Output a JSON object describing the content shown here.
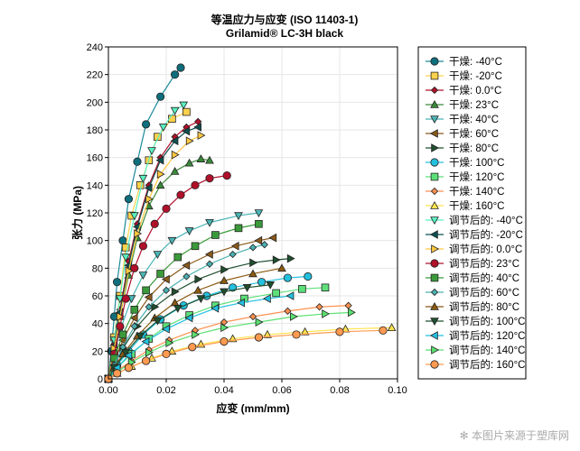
{
  "chart_data": {
    "type": "line",
    "title": "等温应力与应变 (ISO 11403-1)",
    "subtitle": "Grilamid® LC-3H black",
    "xlabel": "应变 (mm/mm)",
    "ylabel": "张力 (MPa)",
    "xlim": [
      0,
      0.1
    ],
    "ylim": [
      0,
      240
    ],
    "xticks": [
      "0.00",
      "0.02",
      "0.04",
      "0.06",
      "0.08",
      "0.10"
    ],
    "yticks": [
      "0",
      "20",
      "40",
      "60",
      "80",
      "100",
      "120",
      "140",
      "160",
      "180",
      "200",
      "220",
      "240"
    ],
    "grid": true,
    "legend_position": "right-outside",
    "series": [
      {
        "name": "干燥: -40°C",
        "marker": "circle",
        "fill": "#0f6e7c",
        "line": "#1a8a99",
        "points": [
          [
            0,
            0
          ],
          [
            0.001,
            20
          ],
          [
            0.002,
            45
          ],
          [
            0.003,
            70
          ],
          [
            0.005,
            100
          ],
          [
            0.007,
            130
          ],
          [
            0.01,
            157
          ],
          [
            0.013,
            184
          ],
          [
            0.018,
            204
          ],
          [
            0.023,
            220
          ],
          [
            0.025,
            225
          ]
        ]
      },
      {
        "name": "干燥: -20°C",
        "marker": "square",
        "fill": "#ffd24d",
        "line": "#ffd24d",
        "points": [
          [
            0,
            0
          ],
          [
            0.002,
            30
          ],
          [
            0.004,
            60
          ],
          [
            0.006,
            95
          ],
          [
            0.008,
            118
          ],
          [
            0.011,
            140
          ],
          [
            0.014,
            158
          ],
          [
            0.017,
            175
          ],
          [
            0.022,
            188
          ],
          [
            0.027,
            193
          ]
        ]
      },
      {
        "name": "干燥: 0.0°C",
        "marker": "diamond",
        "fill": "#b0102a",
        "line": "#b0102a",
        "points": [
          [
            0,
            0
          ],
          [
            0.002,
            25
          ],
          [
            0.004,
            50
          ],
          [
            0.007,
            85
          ],
          [
            0.01,
            112
          ],
          [
            0.014,
            140
          ],
          [
            0.018,
            160
          ],
          [
            0.023,
            175
          ],
          [
            0.027,
            182
          ],
          [
            0.031,
            186
          ]
        ]
      },
      {
        "name": "干燥: 23°C",
        "marker": "up",
        "fill": "#3a8a3a",
        "line": "#3a8a3a",
        "points": [
          [
            0,
            0
          ],
          [
            0.002,
            22
          ],
          [
            0.004,
            45
          ],
          [
            0.007,
            75
          ],
          [
            0.01,
            102
          ],
          [
            0.014,
            125
          ],
          [
            0.018,
            140
          ],
          [
            0.023,
            150
          ],
          [
            0.028,
            156
          ],
          [
            0.032,
            159
          ],
          [
            0.035,
            158
          ]
        ]
      },
      {
        "name": "干燥: 40°C",
        "marker": "down",
        "fill": "#4bb5b5",
        "line": "#4bb5b5",
        "points": [
          [
            0,
            0
          ],
          [
            0.002,
            18
          ],
          [
            0.004,
            35
          ],
          [
            0.008,
            58
          ],
          [
            0.012,
            75
          ],
          [
            0.017,
            90
          ],
          [
            0.022,
            100
          ],
          [
            0.028,
            107
          ],
          [
            0.035,
            113
          ],
          [
            0.045,
            118
          ],
          [
            0.052,
            120
          ]
        ]
      },
      {
        "name": "干燥: 60°C",
        "marker": "left",
        "fill": "#8b5a1a",
        "line": "#8b5a1a",
        "points": [
          [
            0,
            0
          ],
          [
            0.002,
            12
          ],
          [
            0.005,
            28
          ],
          [
            0.009,
            44
          ],
          [
            0.014,
            59
          ],
          [
            0.02,
            72
          ],
          [
            0.027,
            82
          ],
          [
            0.035,
            90
          ],
          [
            0.044,
            96
          ],
          [
            0.052,
            100
          ],
          [
            0.057,
            102
          ]
        ]
      },
      {
        "name": "干燥: 80°C",
        "marker": "right",
        "fill": "#1f4f2f",
        "line": "#1f4f2f",
        "points": [
          [
            0,
            0
          ],
          [
            0.002,
            10
          ],
          [
            0.005,
            22
          ],
          [
            0.01,
            38
          ],
          [
            0.016,
            52
          ],
          [
            0.023,
            63
          ],
          [
            0.031,
            72
          ],
          [
            0.04,
            79
          ],
          [
            0.05,
            84
          ],
          [
            0.058,
            86
          ],
          [
            0.063,
            87
          ]
        ]
      },
      {
        "name": "干燥: 100°C",
        "marker": "circle",
        "fill": "#23c0dd",
        "line": "#23c0dd",
        "points": [
          [
            0,
            0
          ],
          [
            0.003,
            10
          ],
          [
            0.007,
            20
          ],
          [
            0.012,
            32
          ],
          [
            0.018,
            43
          ],
          [
            0.026,
            53
          ],
          [
            0.034,
            60
          ],
          [
            0.043,
            66
          ],
          [
            0.053,
            70
          ],
          [
            0.062,
            73
          ],
          [
            0.069,
            74
          ]
        ]
      },
      {
        "name": "干燥: 120°C",
        "marker": "square",
        "fill": "#5de07a",
        "line": "#5de07a",
        "points": [
          [
            0,
            0
          ],
          [
            0.003,
            8
          ],
          [
            0.008,
            18
          ],
          [
            0.014,
            29
          ],
          [
            0.02,
            38
          ],
          [
            0.028,
            46
          ],
          [
            0.037,
            53
          ],
          [
            0.047,
            58
          ],
          [
            0.058,
            62
          ],
          [
            0.067,
            65
          ],
          [
            0.075,
            66
          ]
        ]
      },
      {
        "name": "干燥: 140°C",
        "marker": "diamond",
        "fill": "#ff9150",
        "line": "#ff9150",
        "points": [
          [
            0,
            0
          ],
          [
            0.003,
            6
          ],
          [
            0.008,
            13
          ],
          [
            0.014,
            21
          ],
          [
            0.021,
            28
          ],
          [
            0.03,
            35
          ],
          [
            0.04,
            41
          ],
          [
            0.05,
            45
          ],
          [
            0.062,
            49
          ],
          [
            0.073,
            52
          ],
          [
            0.083,
            53
          ]
        ]
      },
      {
        "name": "干燥: 160°C",
        "marker": "up",
        "fill": "#ffe34d",
        "line": "#ffe34d",
        "points": [
          [
            0,
            0
          ],
          [
            0.003,
            4
          ],
          [
            0.008,
            9
          ],
          [
            0.015,
            15
          ],
          [
            0.022,
            20
          ],
          [
            0.032,
            25
          ],
          [
            0.043,
            29
          ],
          [
            0.055,
            32
          ],
          [
            0.068,
            34
          ],
          [
            0.082,
            36
          ],
          [
            0.098,
            37
          ]
        ]
      },
      {
        "name": "调节后的: -40°C",
        "marker": "down",
        "fill": "#5af0c0",
        "line": "#5af0c0",
        "points": [
          [
            0,
            0
          ],
          [
            0.002,
            28
          ],
          [
            0.004,
            58
          ],
          [
            0.006,
            88
          ],
          [
            0.009,
            118
          ],
          [
            0.012,
            145
          ],
          [
            0.015,
            165
          ],
          [
            0.019,
            182
          ],
          [
            0.023,
            194
          ],
          [
            0.026,
            198
          ]
        ]
      },
      {
        "name": "调节后的: -20°C",
        "marker": "left",
        "fill": "#0e5050",
        "line": "#0e5050",
        "points": [
          [
            0,
            0
          ],
          [
            0.002,
            24
          ],
          [
            0.004,
            48
          ],
          [
            0.007,
            82
          ],
          [
            0.01,
            110
          ],
          [
            0.014,
            138
          ],
          [
            0.018,
            158
          ],
          [
            0.023,
            172
          ],
          [
            0.027,
            179
          ],
          [
            0.031,
            182
          ]
        ]
      },
      {
        "name": "调节后的: 0.0°C",
        "marker": "right",
        "fill": "#ffc840",
        "line": "#ffc840",
        "points": [
          [
            0,
            0
          ],
          [
            0.002,
            22
          ],
          [
            0.004,
            45
          ],
          [
            0.007,
            78
          ],
          [
            0.01,
            105
          ],
          [
            0.014,
            130
          ],
          [
            0.018,
            148
          ],
          [
            0.023,
            162
          ],
          [
            0.028,
            172
          ],
          [
            0.032,
            176
          ]
        ]
      },
      {
        "name": "调节后的: 23°C",
        "marker": "circle",
        "fill": "#b0102a",
        "line": "#b0102a",
        "points": [
          [
            0,
            0
          ],
          [
            0.002,
            18
          ],
          [
            0.004,
            38
          ],
          [
            0.006,
            58
          ],
          [
            0.009,
            80
          ],
          [
            0.012,
            96
          ],
          [
            0.016,
            112
          ],
          [
            0.02,
            123
          ],
          [
            0.025,
            133
          ],
          [
            0.03,
            140
          ],
          [
            0.035,
            145
          ],
          [
            0.041,
            147
          ]
        ]
      },
      {
        "name": "调节后的: 40°C",
        "marker": "square",
        "fill": "#3a9a3a",
        "line": "#3a9a3a",
        "points": [
          [
            0,
            0
          ],
          [
            0.002,
            15
          ],
          [
            0.005,
            32
          ],
          [
            0.009,
            50
          ],
          [
            0.013,
            64
          ],
          [
            0.018,
            76
          ],
          [
            0.024,
            88
          ],
          [
            0.03,
            96
          ],
          [
            0.037,
            104
          ],
          [
            0.045,
            109
          ],
          [
            0.052,
            112
          ]
        ]
      },
      {
        "name": "调节后的: 60°C",
        "marker": "diamond",
        "fill": "#4ab0b0",
        "line": "#4ab0b0",
        "points": [
          [
            0,
            0
          ],
          [
            0.002,
            10
          ],
          [
            0.005,
            23
          ],
          [
            0.009,
            38
          ],
          [
            0.014,
            52
          ],
          [
            0.02,
            64
          ],
          [
            0.027,
            74
          ],
          [
            0.035,
            83
          ],
          [
            0.043,
            90
          ],
          [
            0.05,
            95
          ],
          [
            0.054,
            97
          ]
        ]
      },
      {
        "name": "调节后的: 80°C",
        "marker": "up",
        "fill": "#8b5a10",
        "line": "#8b5a10",
        "points": [
          [
            0,
            0
          ],
          [
            0.002,
            8
          ],
          [
            0.005,
            18
          ],
          [
            0.01,
            31
          ],
          [
            0.016,
            44
          ],
          [
            0.023,
            55
          ],
          [
            0.031,
            64
          ],
          [
            0.04,
            71
          ],
          [
            0.05,
            76
          ],
          [
            0.06,
            80
          ]
        ]
      },
      {
        "name": "调节后的: 100°C",
        "marker": "down",
        "fill": "#1f4f2f",
        "line": "#1f4f2f",
        "points": [
          [
            0,
            0
          ],
          [
            0.002,
            8
          ],
          [
            0.006,
            19
          ],
          [
            0.011,
            31
          ],
          [
            0.017,
            42
          ],
          [
            0.024,
            51
          ],
          [
            0.032,
            58
          ],
          [
            0.04,
            63
          ],
          [
            0.048,
            66
          ],
          [
            0.056,
            68
          ]
        ]
      },
      {
        "name": "调节后的: 120°C",
        "marker": "left",
        "fill": "#22c0e0",
        "line": "#22c0e0",
        "points": [
          [
            0,
            0
          ],
          [
            0.003,
            8
          ],
          [
            0.007,
            17
          ],
          [
            0.013,
            27
          ],
          [
            0.02,
            36
          ],
          [
            0.028,
            44
          ],
          [
            0.037,
            51
          ],
          [
            0.046,
            55
          ],
          [
            0.055,
            58
          ],
          [
            0.063,
            60
          ]
        ]
      },
      {
        "name": "调节后的: 140°C",
        "marker": "right",
        "fill": "#5ae070",
        "line": "#5ae070",
        "points": [
          [
            0,
            0
          ],
          [
            0.003,
            5
          ],
          [
            0.008,
            12
          ],
          [
            0.014,
            19
          ],
          [
            0.021,
            26
          ],
          [
            0.03,
            32
          ],
          [
            0.04,
            37
          ],
          [
            0.052,
            41
          ],
          [
            0.064,
            45
          ],
          [
            0.075,
            47
          ],
          [
            0.084,
            48
          ]
        ]
      },
      {
        "name": "调节后的: 160°C",
        "marker": "circle",
        "fill": "#ff9a50",
        "line": "#ff9a50",
        "points": [
          [
            0,
            0
          ],
          [
            0.003,
            4
          ],
          [
            0.007,
            8
          ],
          [
            0.013,
            13
          ],
          [
            0.02,
            18
          ],
          [
            0.029,
            23
          ],
          [
            0.04,
            27
          ],
          [
            0.052,
            30
          ],
          [
            0.065,
            32
          ],
          [
            0.08,
            34
          ],
          [
            0.095,
            35
          ]
        ]
      }
    ]
  },
  "watermark": "✻ 本图片来源于塑库网"
}
